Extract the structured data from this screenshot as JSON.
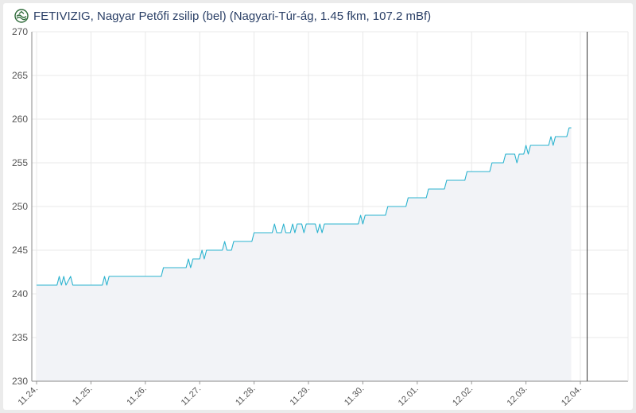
{
  "header": {
    "title": "FETIVIZIG, Nagyar Petőfi zsilip (bel) (Nagyari-Túr-ág, 1.45 fkm, 107.2 mBf)",
    "logo_icon": "fetivizig-logo-icon"
  },
  "colors": {
    "line": "#2bb3cf",
    "area": "#f2f3f7",
    "grid": "#e8e8e8",
    "axis": "#333333"
  },
  "chart_data": {
    "type": "area",
    "title": "",
    "xlabel": "",
    "ylabel": "",
    "ylim": [
      230,
      270
    ],
    "yticks": [
      230,
      235,
      240,
      245,
      250,
      255,
      260,
      265,
      270
    ],
    "xlim": [
      "11.24.",
      "12.04."
    ],
    "xticks": [
      "11.24.",
      "11.25.",
      "11.26.",
      "11.27.",
      "11.28.",
      "11.29.",
      "11.30.",
      "12.01.",
      "12.02.",
      "12.03.",
      "12.04."
    ],
    "grid": true,
    "legend": "none",
    "current_marker": "12.04. 03:00",
    "series": [
      {
        "name": "",
        "points": [
          [
            "11.24. 00:00",
            241
          ],
          [
            "11.24. 09:00",
            241
          ],
          [
            "11.24. 10:00",
            242
          ],
          [
            "11.24. 11:00",
            241
          ],
          [
            "11.24. 12:00",
            242
          ],
          [
            "11.24. 13:00",
            241
          ],
          [
            "11.24. 15:00",
            242
          ],
          [
            "11.24. 16:00",
            241
          ],
          [
            "11.25. 05:00",
            241
          ],
          [
            "11.25. 06:00",
            242
          ],
          [
            "11.25. 07:00",
            241
          ],
          [
            "11.25. 08:00",
            242
          ],
          [
            "11.26. 07:00",
            242
          ],
          [
            "11.26. 08:00",
            243
          ],
          [
            "11.26. 18:00",
            243
          ],
          [
            "11.26. 19:00",
            244
          ],
          [
            "11.26. 20:00",
            243
          ],
          [
            "11.26. 21:00",
            244
          ],
          [
            "11.27. 00:00",
            244
          ],
          [
            "11.27. 01:00",
            245
          ],
          [
            "11.27. 02:00",
            244
          ],
          [
            "11.27. 03:00",
            245
          ],
          [
            "11.27. 10:00",
            245
          ],
          [
            "11.27. 11:00",
            246
          ],
          [
            "11.27. 12:00",
            245
          ],
          [
            "11.27. 14:00",
            245
          ],
          [
            "11.27. 15:00",
            246
          ],
          [
            "11.27. 23:00",
            246
          ],
          [
            "11.28. 00:00",
            247
          ],
          [
            "11.28. 08:00",
            247
          ],
          [
            "11.28. 09:00",
            248
          ],
          [
            "11.28. 10:00",
            247
          ],
          [
            "11.28. 12:00",
            247
          ],
          [
            "11.28. 13:00",
            248
          ],
          [
            "11.28. 14:00",
            247
          ],
          [
            "11.28. 16:00",
            247
          ],
          [
            "11.28. 17:00",
            248
          ],
          [
            "11.28. 18:00",
            247
          ],
          [
            "11.28. 19:00",
            248
          ],
          [
            "11.28. 21:00",
            248
          ],
          [
            "11.28. 22:00",
            247
          ],
          [
            "11.28. 23:00",
            248
          ],
          [
            "11.29. 03:00",
            248
          ],
          [
            "11.29. 04:00",
            247
          ],
          [
            "11.29. 05:00",
            248
          ],
          [
            "11.29. 06:00",
            247
          ],
          [
            "11.29. 07:00",
            248
          ],
          [
            "11.29. 22:00",
            248
          ],
          [
            "11.29. 23:00",
            249
          ],
          [
            "11.30. 00:00",
            248
          ],
          [
            "11.30. 01:00",
            249
          ],
          [
            "11.30. 10:00",
            249
          ],
          [
            "11.30. 11:00",
            250
          ],
          [
            "11.30. 19:00",
            250
          ],
          [
            "11.30. 20:00",
            251
          ],
          [
            "12.01. 04:00",
            251
          ],
          [
            "12.01. 05:00",
            252
          ],
          [
            "12.01. 12:00",
            252
          ],
          [
            "12.01. 13:00",
            253
          ],
          [
            "12.01. 21:00",
            253
          ],
          [
            "12.01. 22:00",
            254
          ],
          [
            "12.02. 08:00",
            254
          ],
          [
            "12.02. 09:00",
            255
          ],
          [
            "12.02. 14:00",
            255
          ],
          [
            "12.02. 15:00",
            256
          ],
          [
            "12.02. 19:00",
            256
          ],
          [
            "12.02. 20:00",
            255
          ],
          [
            "12.02. 21:00",
            256
          ],
          [
            "12.02. 23:00",
            256
          ],
          [
            "12.03. 00:00",
            257
          ],
          [
            "12.03. 01:00",
            256
          ],
          [
            "12.03. 02:00",
            257
          ],
          [
            "12.03. 10:00",
            257
          ],
          [
            "12.03. 11:00",
            258
          ],
          [
            "12.03. 12:00",
            257
          ],
          [
            "12.03. 13:00",
            258
          ],
          [
            "12.03. 18:00",
            258
          ],
          [
            "12.03. 19:00",
            259
          ],
          [
            "12.03. 20:00",
            259
          ]
        ]
      }
    ]
  }
}
